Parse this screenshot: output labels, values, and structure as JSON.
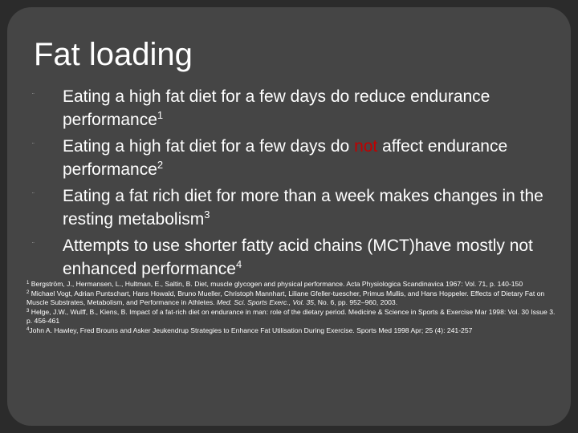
{
  "slide": {
    "title": "Fat loading",
    "bullets": [
      {
        "text": "Eating a high fat diet for a few days do reduce endurance performance",
        "sup": "1"
      },
      {
        "pre": "Eating a high fat diet for a few days do ",
        "highlight": "not",
        "post": " affect endurance performance",
        "sup": "2"
      },
      {
        "text": "Eating a fat rich diet for more than a week makes changes in the resting metabolism",
        "sup": "3"
      },
      {
        "text": "Attempts to use shorter fatty acid chains (MCT)have mostly not enhanced performance",
        "sup": "4"
      }
    ],
    "references": [
      {
        "sup": "1",
        "text": " Bergström, J., Hermansen, L., Hultman, E., Saltin, B. Diet, muscle glycogen and physical performance. Acta Physiologica Scandinavica 1967: Vol. 71, p. 140-150"
      },
      {
        "sup": "2",
        "pre": " Michael Vogt, Adrian Puntschart, Hans Howald, Bruno Mueller, Christoph Mannhart, Liliane Gfeller-tuescher, Primus Mullis, and Hans Hoppeler. Effects of Dietary Fat on Muscle Substrates, Metabolism, and Performance in Athletes. ",
        "italic": "Med. Sci. Sports Exerc., Vol. 35",
        "post": ", No. 6, pp. 952–960, 2003."
      },
      {
        "sup": "3",
        "text": " Helge, J.W., Wulff, B., Kiens, B. Impact of a fat-rich diet on endurance in man: role of the dietary period. Medicine & Science in Sports & Exercise Mar 1998: Vol. 30 Issue 3. p. 456-461"
      },
      {
        "sup": "4",
        "text": "John A. Hawley, Fred Brouns and Asker Jeukendrup Strategies to Enhance Fat Utilisation During Exercise. Sports Med 1998 Apr; 25 (4): 241-257"
      }
    ],
    "bullet_marker": "¨",
    "colors": {
      "background": "#2b2b2b",
      "panel": "#454545",
      "text": "#ffffff",
      "highlight": "#c00000"
    }
  }
}
